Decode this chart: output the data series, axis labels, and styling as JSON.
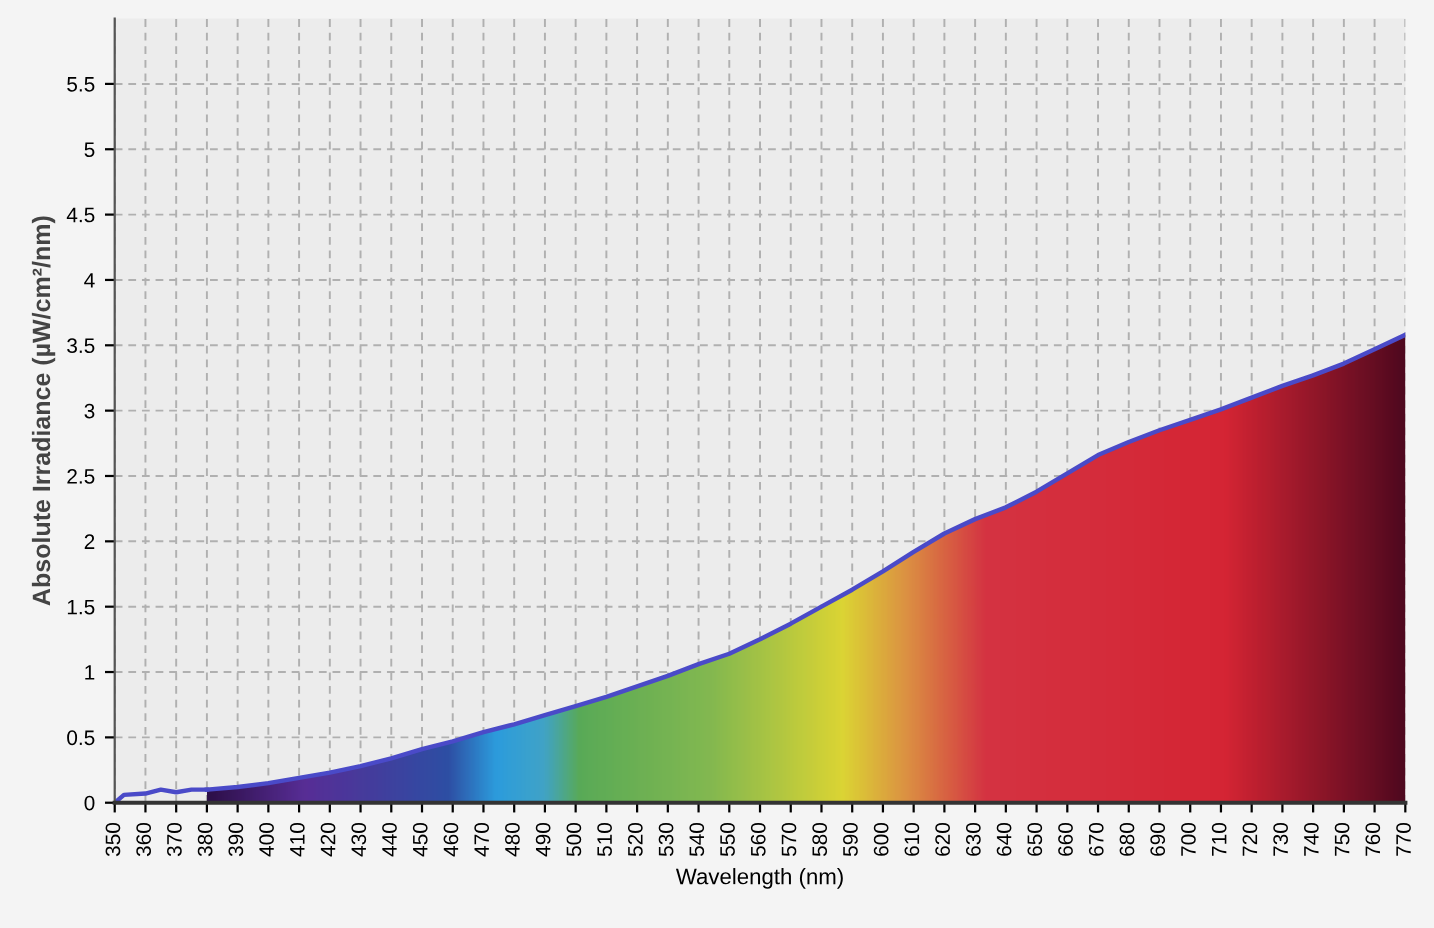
{
  "chart_data": {
    "type": "area",
    "xlabel": "Wavelength (nm)",
    "ylabel": "Absolute Irradiance (µW/cm²/nm)",
    "xlim": [
      350,
      770
    ],
    "xticks": [
      350,
      360,
      370,
      380,
      390,
      400,
      410,
      420,
      430,
      440,
      450,
      460,
      470,
      480,
      490,
      500,
      510,
      520,
      530,
      540,
      550,
      560,
      570,
      580,
      590,
      600,
      610,
      620,
      630,
      640,
      650,
      660,
      670,
      680,
      690,
      700,
      710,
      720,
      730,
      740,
      750,
      760,
      770
    ],
    "ylim": [
      0,
      6
    ],
    "yticks": [
      0,
      0.5,
      1,
      1.5,
      2,
      2.5,
      3,
      3.5,
      4,
      4.5,
      5,
      5.5
    ],
    "grid": true,
    "series": [
      {
        "type": "line",
        "color": "#4a4ac8",
        "x": [
          350,
          353,
          360,
          365,
          370,
          375,
          380
        ],
        "values": [
          0,
          0.06,
          0.07,
          0.1,
          0.08,
          0.1,
          0.1
        ]
      },
      {
        "type": "area",
        "color": "#4a4ac8",
        "x": [
          380,
          390,
          400,
          410,
          420,
          430,
          440,
          450,
          460,
          470,
          480,
          490,
          500,
          510,
          520,
          530,
          540,
          550,
          560,
          570,
          580,
          590,
          600,
          610,
          620,
          630,
          640,
          650,
          660,
          670,
          680,
          690,
          700,
          710,
          720,
          730,
          740,
          750,
          760,
          770
        ],
        "values": [
          0.1,
          0.12,
          0.15,
          0.19,
          0.23,
          0.28,
          0.34,
          0.41,
          0.47,
          0.54,
          0.6,
          0.67,
          0.74,
          0.81,
          0.89,
          0.97,
          1.06,
          1.14,
          1.25,
          1.37,
          1.5,
          1.63,
          1.77,
          1.92,
          2.06,
          2.17,
          2.26,
          2.38,
          2.52,
          2.66,
          2.76,
          2.85,
          2.93,
          3.01,
          3.1,
          3.19,
          3.27,
          3.36,
          3.47,
          3.58
        ]
      }
    ]
  }
}
